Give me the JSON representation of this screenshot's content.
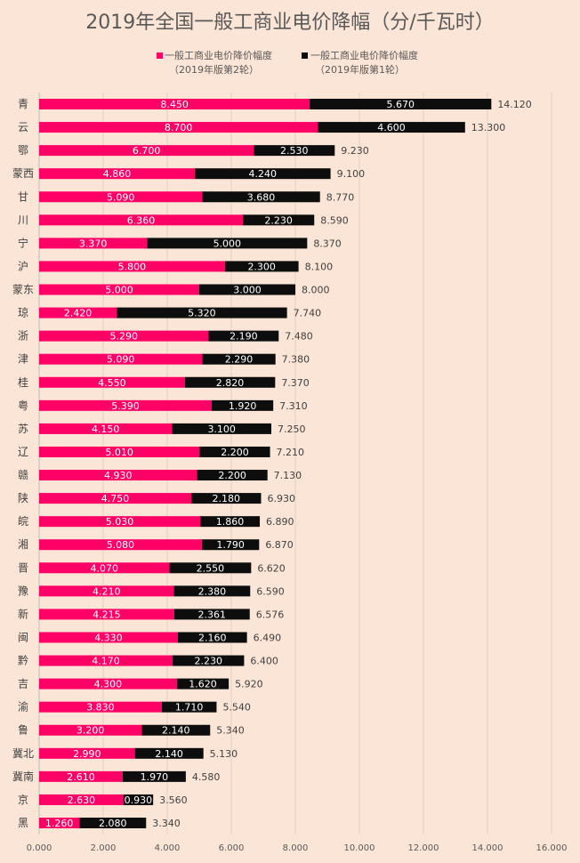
{
  "chart_data": {
    "type": "bar",
    "orientation": "horizontal",
    "stacked": true,
    "title": "2019年全国一般工商业电价降幅（分/千瓦时）",
    "categories": [
      "青",
      "云",
      "鄂",
      "蒙西",
      "甘",
      "川",
      "宁",
      "沪",
      "蒙东",
      "琼",
      "浙",
      "津",
      "桂",
      "粤",
      "苏",
      "辽",
      "赣",
      "陕",
      "皖",
      "湘",
      "晋",
      "豫",
      "新",
      "闽",
      "黔",
      "吉",
      "渝",
      "鲁",
      "冀北",
      "冀南",
      "京",
      "黑"
    ],
    "series": [
      {
        "name": "一般工商业电价降价幅度（2019年版第2轮）",
        "legend_line1": "一般工商业电价降价幅度",
        "legend_line2": "（2019年版第2轮）",
        "color": "#ff0066",
        "values": [
          8.45,
          8.7,
          6.7,
          4.86,
          5.09,
          6.36,
          3.37,
          5.8,
          5.0,
          2.42,
          5.29,
          5.09,
          4.55,
          5.39,
          4.15,
          5.01,
          4.93,
          4.75,
          5.03,
          5.08,
          4.07,
          4.21,
          4.215,
          4.33,
          4.17,
          4.3,
          3.83,
          3.2,
          2.99,
          2.61,
          2.63,
          1.26
        ]
      },
      {
        "name": "一般工商业电价降价幅度（2019年版第1轮）",
        "legend_line1": "一般工商业电价降价幅度",
        "legend_line2": "（2019年版第1轮）",
        "color": "#0d0d0d",
        "values": [
          5.67,
          4.6,
          2.53,
          4.24,
          3.68,
          2.23,
          5.0,
          2.3,
          3.0,
          5.32,
          2.19,
          2.29,
          2.82,
          1.92,
          3.1,
          2.2,
          2.2,
          2.18,
          1.86,
          1.79,
          2.55,
          2.38,
          2.361,
          2.16,
          2.23,
          1.62,
          1.71,
          2.14,
          2.14,
          1.97,
          0.93,
          2.08
        ]
      }
    ],
    "totals": [
      14.12,
      13.3,
      9.23,
      9.1,
      8.77,
      8.59,
      8.37,
      8.1,
      8.0,
      7.74,
      7.48,
      7.38,
      7.37,
      7.31,
      7.25,
      7.21,
      7.13,
      6.93,
      6.89,
      6.87,
      6.62,
      6.59,
      6.576,
      6.49,
      6.4,
      5.92,
      5.54,
      5.34,
      5.13,
      4.58,
      3.56,
      3.34
    ],
    "xlim": [
      0,
      16
    ],
    "xticks": [
      "0.000",
      "2.000",
      "4.000",
      "6.000",
      "8.000",
      "10.000",
      "12.000",
      "14.000",
      "16.000"
    ],
    "grid": true,
    "legend_position": "top",
    "background": "#fbe5d6"
  }
}
